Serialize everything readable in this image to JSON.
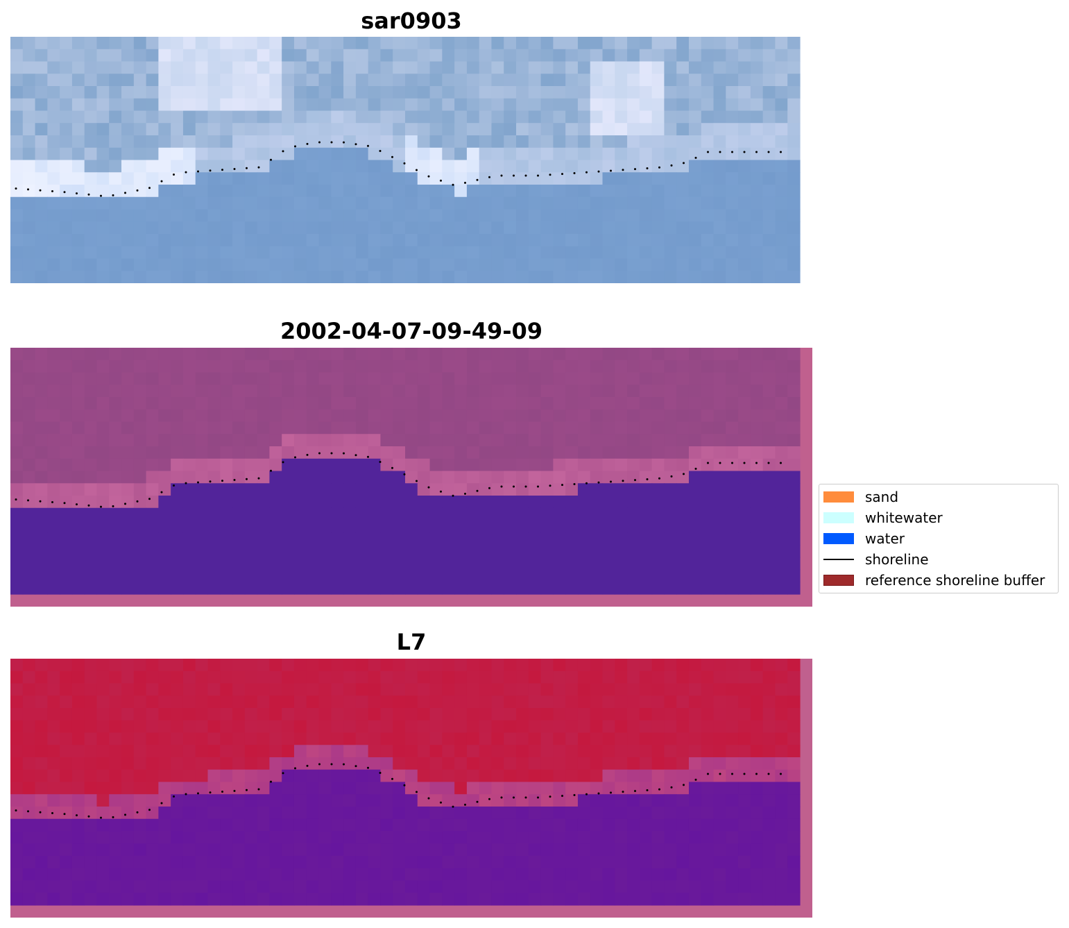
{
  "panels": [
    {
      "title": "sar0903",
      "kind": "rgb",
      "has_buffer_border": false
    },
    {
      "title": "2002-04-07-09-49-09",
      "kind": "classification",
      "has_buffer_border": true
    },
    {
      "title": "L7",
      "kind": "mndwi",
      "has_buffer_border": true
    }
  ],
  "legend": {
    "items": [
      {
        "label": "sand",
        "color": "#ff8c3c",
        "type": "patch"
      },
      {
        "label": "whitewater",
        "color": "#ccffff",
        "type": "patch"
      },
      {
        "label": "water",
        "color": "#005aff",
        "type": "patch"
      },
      {
        "label": "shoreline",
        "color": "#000000",
        "type": "line"
      },
      {
        "label": "reference shoreline buffer",
        "color": "#9e2a2b",
        "type": "patch"
      }
    ]
  },
  "colors": {
    "sar_water": "#7aa0d0",
    "sar_land": "#a8c0e0",
    "sar_white": "#eef2ff",
    "class_land": "#9a4a88",
    "class_water": "#52249a",
    "class_pink": "#c2649c",
    "ndwi_land": "#c0204a",
    "ndwi_water": "#6a1a9a",
    "buffer_border": "#c0608e"
  }
}
